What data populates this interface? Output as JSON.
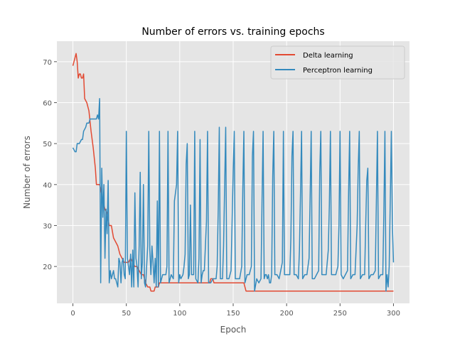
{
  "chart_data": {
    "type": "line",
    "title": "Number of errors vs. training epochs",
    "xlabel": "Epoch",
    "ylabel": "Number of errors",
    "xlim": [
      -15,
      315
    ],
    "ylim": [
      11,
      75
    ],
    "xticks": [
      0,
      50,
      100,
      150,
      200,
      250,
      300
    ],
    "yticks": [
      20,
      30,
      40,
      50,
      60,
      70
    ],
    "grid": true,
    "legend_position": "top-right",
    "series": [
      {
        "name": "Delta learning",
        "color": "#E24A33",
        "points": [
          [
            0,
            69
          ],
          [
            1,
            70
          ],
          [
            2,
            71
          ],
          [
            3,
            72
          ],
          [
            4,
            70
          ],
          [
            5,
            66
          ],
          [
            6,
            67
          ],
          [
            7,
            67
          ],
          [
            8,
            66
          ],
          [
            9,
            66
          ],
          [
            10,
            67
          ],
          [
            11,
            61
          ],
          [
            13,
            60
          ],
          [
            15,
            58
          ],
          [
            17,
            53
          ],
          [
            19,
            49
          ],
          [
            21,
            44
          ],
          [
            22,
            40
          ],
          [
            24,
            40
          ],
          [
            25,
            40
          ],
          [
            26,
            39
          ],
          [
            28,
            36
          ],
          [
            30,
            34
          ],
          [
            32,
            33
          ],
          [
            34,
            30
          ],
          [
            36,
            30
          ],
          [
            38,
            27
          ],
          [
            40,
            26
          ],
          [
            42,
            25
          ],
          [
            44,
            23
          ],
          [
            46,
            22
          ],
          [
            48,
            21
          ],
          [
            50,
            21
          ],
          [
            52,
            21
          ],
          [
            54,
            22
          ],
          [
            56,
            21
          ],
          [
            58,
            20
          ],
          [
            60,
            20
          ],
          [
            62,
            19
          ],
          [
            64,
            18
          ],
          [
            66,
            18
          ],
          [
            68,
            16
          ],
          [
            70,
            15
          ],
          [
            72,
            15
          ],
          [
            73,
            14
          ],
          [
            76,
            14
          ],
          [
            77,
            15
          ],
          [
            80,
            15
          ],
          [
            81,
            16
          ],
          [
            100,
            16
          ],
          [
            125,
            16
          ],
          [
            128,
            16
          ],
          [
            129,
            17
          ],
          [
            131,
            17
          ],
          [
            132,
            16
          ],
          [
            160,
            16
          ],
          [
            162,
            14
          ],
          [
            200,
            14
          ],
          [
            250,
            14
          ],
          [
            300,
            14
          ]
        ]
      },
      {
        "name": "Perceptron learning",
        "color": "#348ABD",
        "points": [
          [
            0,
            49
          ],
          [
            2,
            48
          ],
          [
            3,
            48
          ],
          [
            4,
            50
          ],
          [
            6,
            50
          ],
          [
            8,
            51
          ],
          [
            9,
            51
          ],
          [
            10,
            53
          ],
          [
            12,
            54
          ],
          [
            13,
            55
          ],
          [
            15,
            55
          ],
          [
            16,
            56
          ],
          [
            20,
            56
          ],
          [
            22,
            56
          ],
          [
            23,
            57
          ],
          [
            24,
            56
          ],
          [
            25,
            61
          ],
          [
            26,
            16
          ],
          [
            27,
            44
          ],
          [
            28,
            32
          ],
          [
            29,
            40
          ],
          [
            30,
            22
          ],
          [
            31,
            34
          ],
          [
            32,
            28
          ],
          [
            33,
            41
          ],
          [
            34,
            16
          ],
          [
            35,
            19
          ],
          [
            36,
            17
          ],
          [
            37,
            18
          ],
          [
            38,
            19
          ],
          [
            39,
            17
          ],
          [
            40,
            17
          ],
          [
            41,
            16
          ],
          [
            42,
            15
          ],
          [
            43,
            22
          ],
          [
            44,
            21
          ],
          [
            45,
            16
          ],
          [
            46,
            21
          ],
          [
            47,
            22
          ],
          [
            48,
            18
          ],
          [
            49,
            17
          ],
          [
            50,
            53
          ],
          [
            51,
            22
          ],
          [
            52,
            20
          ],
          [
            53,
            18
          ],
          [
            54,
            23
          ],
          [
            55,
            15
          ],
          [
            56,
            24
          ],
          [
            57,
            15
          ],
          [
            58,
            38
          ],
          [
            59,
            22
          ],
          [
            60,
            20
          ],
          [
            61,
            15
          ],
          [
            62,
            25
          ],
          [
            63,
            43
          ],
          [
            64,
            17
          ],
          [
            65,
            21
          ],
          [
            66,
            40
          ],
          [
            67,
            16
          ],
          [
            68,
            15
          ],
          [
            69,
            20
          ],
          [
            70,
            25
          ],
          [
            71,
            53
          ],
          [
            72,
            24
          ],
          [
            73,
            18
          ],
          [
            74,
            25
          ],
          [
            75,
            21
          ],
          [
            76,
            16
          ],
          [
            77,
            22
          ],
          [
            78,
            15
          ],
          [
            79,
            36
          ],
          [
            80,
            15
          ],
          [
            81,
            53
          ],
          [
            82,
            16
          ],
          [
            84,
            18
          ],
          [
            87,
            18
          ],
          [
            88,
            20
          ],
          [
            89,
            53
          ],
          [
            90,
            16
          ],
          [
            92,
            18
          ],
          [
            94,
            17
          ],
          [
            95,
            36
          ],
          [
            97,
            40
          ],
          [
            98,
            53
          ],
          [
            99,
            16
          ],
          [
            100,
            18
          ],
          [
            101,
            17
          ],
          [
            103,
            18
          ],
          [
            104,
            20
          ],
          [
            105,
            23
          ],
          [
            106,
            45
          ],
          [
            107,
            50
          ],
          [
            108,
            17
          ],
          [
            109,
            18
          ],
          [
            110,
            35
          ],
          [
            111,
            18
          ],
          [
            113,
            18
          ],
          [
            114,
            53
          ],
          [
            115,
            17
          ],
          [
            117,
            16
          ],
          [
            118,
            22
          ],
          [
            119,
            51
          ],
          [
            120,
            16
          ],
          [
            121,
            18
          ],
          [
            122,
            19
          ],
          [
            123,
            19
          ],
          [
            124,
            25
          ],
          [
            125,
            31
          ],
          [
            126,
            53
          ],
          [
            127,
            16
          ],
          [
            129,
            16
          ],
          [
            131,
            17
          ],
          [
            134,
            17
          ],
          [
            135,
            20
          ],
          [
            136,
            34
          ],
          [
            137,
            54
          ],
          [
            138,
            17
          ],
          [
            140,
            17
          ],
          [
            141,
            25
          ],
          [
            143,
            54
          ],
          [
            144,
            17
          ],
          [
            146,
            17
          ],
          [
            148,
            19
          ],
          [
            150,
            43
          ],
          [
            151,
            53
          ],
          [
            152,
            17
          ],
          [
            154,
            17
          ],
          [
            156,
            17
          ],
          [
            158,
            20
          ],
          [
            159,
            39
          ],
          [
            160,
            53
          ],
          [
            161,
            16
          ],
          [
            163,
            18
          ],
          [
            165,
            18
          ],
          [
            167,
            20
          ],
          [
            168,
            47
          ],
          [
            169,
            53
          ],
          [
            170,
            14
          ],
          [
            172,
            17
          ],
          [
            174,
            16
          ],
          [
            176,
            17
          ],
          [
            177,
            36
          ],
          [
            178,
            53
          ],
          [
            179,
            17
          ],
          [
            180,
            18
          ],
          [
            181,
            18
          ],
          [
            182,
            17
          ],
          [
            183,
            18
          ],
          [
            184,
            16
          ],
          [
            185,
            16
          ],
          [
            186,
            18
          ],
          [
            187,
            42
          ],
          [
            188,
            53
          ],
          [
            189,
            18
          ],
          [
            191,
            18
          ],
          [
            193,
            17
          ],
          [
            196,
            21
          ],
          [
            197,
            53
          ],
          [
            198,
            18
          ],
          [
            200,
            18
          ],
          [
            203,
            18
          ],
          [
            204,
            27
          ],
          [
            205,
            47
          ],
          [
            206,
            53
          ],
          [
            207,
            18
          ],
          [
            209,
            18
          ],
          [
            211,
            17
          ],
          [
            212,
            24
          ],
          [
            213,
            38
          ],
          [
            214,
            53
          ],
          [
            215,
            17
          ],
          [
            217,
            18
          ],
          [
            219,
            18
          ],
          [
            221,
            22
          ],
          [
            222,
            37
          ],
          [
            223,
            53
          ],
          [
            224,
            17
          ],
          [
            226,
            17
          ],
          [
            228,
            18
          ],
          [
            230,
            19
          ],
          [
            231,
            43
          ],
          [
            232,
            53
          ],
          [
            233,
            18
          ],
          [
            235,
            18
          ],
          [
            237,
            18
          ],
          [
            239,
            24
          ],
          [
            240,
            35
          ],
          [
            241,
            53
          ],
          [
            242,
            18
          ],
          [
            244,
            18
          ],
          [
            246,
            18
          ],
          [
            248,
            20
          ],
          [
            249,
            30
          ],
          [
            250,
            53
          ],
          [
            251,
            18
          ],
          [
            253,
            17
          ],
          [
            255,
            18
          ],
          [
            257,
            19
          ],
          [
            258,
            38
          ],
          [
            259,
            53
          ],
          [
            260,
            17
          ],
          [
            262,
            18
          ],
          [
            264,
            18
          ],
          [
            266,
            30
          ],
          [
            267,
            44
          ],
          [
            268,
            53
          ],
          [
            269,
            17
          ],
          [
            271,
            18
          ],
          [
            273,
            18
          ],
          [
            274,
            30
          ],
          [
            275,
            41
          ],
          [
            276,
            44
          ],
          [
            277,
            17
          ],
          [
            279,
            18
          ],
          [
            281,
            18
          ],
          [
            283,
            19
          ],
          [
            284,
            36
          ],
          [
            285,
            53
          ],
          [
            286,
            17
          ],
          [
            288,
            18
          ],
          [
            290,
            18
          ],
          [
            291,
            33
          ],
          [
            292,
            53
          ],
          [
            293,
            14
          ],
          [
            294,
            18
          ],
          [
            295,
            15
          ],
          [
            296,
            20
          ],
          [
            297,
            36
          ],
          [
            298,
            53
          ],
          [
            299,
            30
          ],
          [
            300,
            21
          ]
        ]
      }
    ]
  }
}
